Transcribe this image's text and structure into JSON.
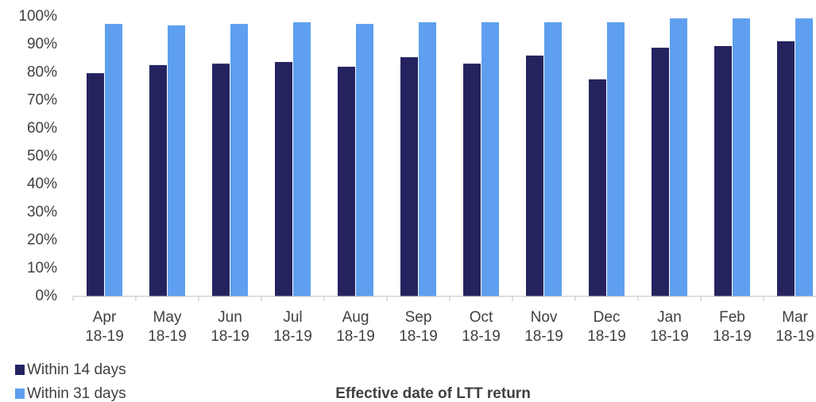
{
  "chart_data": {
    "type": "bar",
    "x_label": "Effective date of LTT return",
    "categories": [
      "Apr 18-19",
      "May 18-19",
      "Jun 18-19",
      "Jul 18-19",
      "Aug 18-19",
      "Sep 18-19",
      "Oct 18-19",
      "Nov 18-19",
      "Dec 18-19",
      "Jan 18-19",
      "Feb 18-19",
      "Mar 18-19"
    ],
    "series": [
      {
        "name": "Within 14 days",
        "color": "#25235f",
        "values": [
          79.8,
          82.7,
          83.2,
          83.8,
          82.1,
          85.5,
          83.2,
          86.1,
          77.6,
          88.9,
          89.5,
          91.2
        ]
      },
      {
        "name": "Within 31 days",
        "color": "#5e9ff0",
        "values": [
          97.4,
          96.9,
          97.4,
          98.0,
          97.4,
          98.0,
          98.0,
          98.0,
          98.0,
          99.4,
          99.4,
          99.4
        ]
      }
    ],
    "ylim": [
      0,
      100
    ],
    "yticks": [
      {
        "value": 0,
        "label": "0%"
      },
      {
        "value": 10,
        "label": "10%"
      },
      {
        "value": 20,
        "label": "20%"
      },
      {
        "value": 30,
        "label": "30%"
      },
      {
        "value": 40,
        "label": "40%"
      },
      {
        "value": 50,
        "label": "50%"
      },
      {
        "value": 60,
        "label": "60%"
      },
      {
        "value": 70,
        "label": "70%"
      },
      {
        "value": 80,
        "label": "80%"
      },
      {
        "value": 90,
        "label": "90%"
      },
      {
        "value": 100,
        "label": "100%"
      }
    ],
    "grid": false,
    "legend": "bottom-left"
  }
}
